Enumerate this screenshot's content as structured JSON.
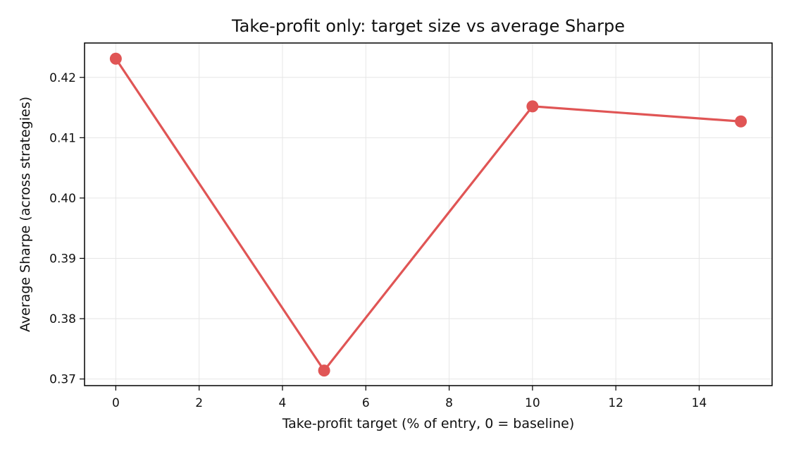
{
  "chart_data": {
    "type": "line",
    "title": "Take-profit only: target size vs average Sharpe",
    "xlabel": "Take-profit target (% of entry, 0 = baseline)",
    "ylabel": "Average Sharpe (across strategies)",
    "x": [
      0,
      5,
      10,
      15
    ],
    "series": [
      {
        "values": [
          0.4231,
          0.3714,
          0.4152,
          0.4127
        ],
        "color": "#e05555"
      }
    ],
    "xlim": [
      -0.75,
      15.75
    ],
    "ylim": [
      0.3689,
      0.4257
    ],
    "xticks": [
      0,
      2,
      4,
      6,
      8,
      10,
      12,
      14
    ],
    "xtick_labels": [
      "0",
      "2",
      "4",
      "6",
      "8",
      "10",
      "12",
      "14"
    ],
    "yticks": [
      0.37,
      0.38,
      0.39,
      0.4,
      0.41,
      0.42
    ],
    "ytick_labels": [
      "0.37",
      "0.38",
      "0.39",
      "0.40",
      "0.41",
      "0.42"
    ],
    "grid": true,
    "marker": "circle"
  }
}
